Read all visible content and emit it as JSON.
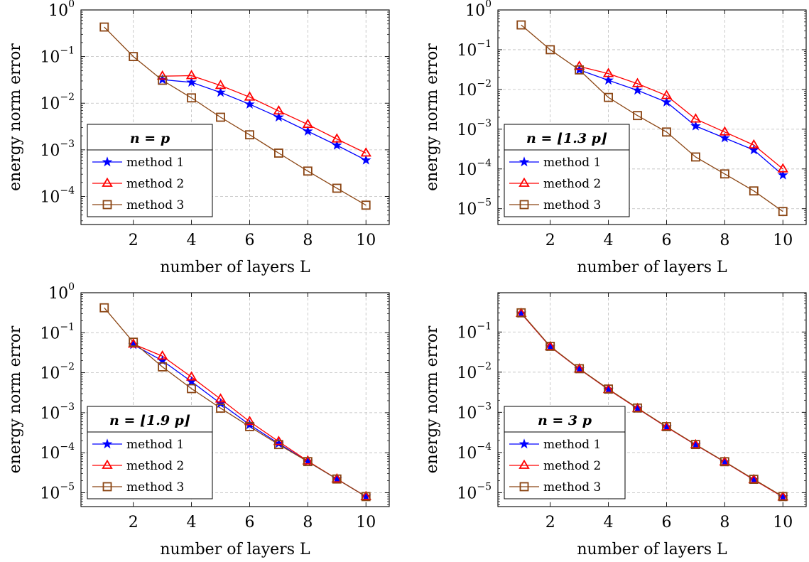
{
  "chart_data": [
    {
      "type": "line",
      "panel": "top-left",
      "x": [
        1,
        2,
        3,
        4,
        5,
        6,
        7,
        8,
        9,
        10
      ],
      "xlabel": "number of layers L",
      "ylabel": "energy norm error",
      "xlim": [
        0.2,
        10.8
      ],
      "ylim": [
        2.5e-05,
        1.0
      ],
      "yscale": "log",
      "xticks": [
        2,
        4,
        6,
        8,
        10
      ],
      "yticks": [
        1,
        0.1,
        0.01,
        0.001,
        0.0001
      ],
      "ytick_labels": [
        {
          "base": "10",
          "exp": "0"
        },
        {
          "base": "10",
          "exp": "−1"
        },
        {
          "base": "10",
          "exp": "−2"
        },
        {
          "base": "10",
          "exp": "−3"
        },
        {
          "base": "10",
          "exp": "−4"
        }
      ],
      "grid": true,
      "legend": {
        "title": "n = p",
        "placement": "bottom-left"
      },
      "series": [
        {
          "name": "method 1",
          "marker": "star",
          "color": "#0000ff",
          "x": [
            3,
            4,
            5,
            6,
            7,
            8,
            9,
            10
          ],
          "values": [
            0.032,
            0.028,
            0.017,
            0.0095,
            0.005,
            0.0025,
            0.00125,
            0.0006
          ]
        },
        {
          "name": "method 2",
          "marker": "triangle",
          "color": "#ff0000",
          "x": [
            3,
            4,
            5,
            6,
            7,
            8,
            9,
            10
          ],
          "values": [
            0.038,
            0.039,
            0.024,
            0.0135,
            0.0068,
            0.0035,
            0.0017,
            0.00085
          ]
        },
        {
          "name": "method 3",
          "marker": "square",
          "color": "#8b4513",
          "x": [
            1,
            2,
            3,
            4,
            5,
            6,
            7,
            8,
            9,
            10
          ],
          "values": [
            0.43,
            0.1,
            0.031,
            0.013,
            0.005,
            0.0021,
            0.00085,
            0.00035,
            0.00015,
            6.5e-05
          ]
        }
      ]
    },
    {
      "type": "line",
      "panel": "top-right",
      "x": [
        1,
        2,
        3,
        4,
        5,
        6,
        7,
        8,
        9,
        10
      ],
      "xlabel": "number of layers L",
      "ylabel": "energy norm error",
      "xlim": [
        0.2,
        10.8
      ],
      "ylim": [
        4e-06,
        1.0
      ],
      "yscale": "log",
      "xticks": [
        2,
        4,
        6,
        8,
        10
      ],
      "yticks": [
        1,
        0.1,
        0.01,
        0.001,
        0.0001,
        1e-05
      ],
      "ytick_labels": [
        {
          "base": "10",
          "exp": "0"
        },
        {
          "base": "10",
          "exp": "−1"
        },
        {
          "base": "10",
          "exp": "−2"
        },
        {
          "base": "10",
          "exp": "−3"
        },
        {
          "base": "10",
          "exp": "−4"
        },
        {
          "base": "10",
          "exp": "−5"
        }
      ],
      "grid": true,
      "legend": {
        "title": "n = ⌊1.3 p⌋",
        "placement": "bottom-left"
      },
      "series": [
        {
          "name": "method 1",
          "marker": "star",
          "color": "#0000ff",
          "x": [
            3,
            4,
            5,
            6,
            7,
            8,
            9,
            10
          ],
          "values": [
            0.031,
            0.017,
            0.0095,
            0.0048,
            0.0012,
            0.0006,
            0.0003,
            7e-05
          ]
        },
        {
          "name": "method 2",
          "marker": "triangle",
          "color": "#ff0000",
          "x": [
            3,
            4,
            5,
            6,
            7,
            8,
            9,
            10
          ],
          "values": [
            0.038,
            0.025,
            0.014,
            0.007,
            0.0018,
            0.00085,
            0.0004,
            0.0001
          ]
        },
        {
          "name": "method 3",
          "marker": "square",
          "color": "#8b4513",
          "x": [
            1,
            2,
            3,
            4,
            5,
            6,
            7,
            8,
            9,
            10
          ],
          "values": [
            0.42,
            0.1,
            0.031,
            0.0063,
            0.0022,
            0.00085,
            0.0002,
            7.5e-05,
            2.8e-05,
            8.5e-06
          ]
        }
      ]
    },
    {
      "type": "line",
      "panel": "bottom-left",
      "x": [
        1,
        2,
        3,
        4,
        5,
        6,
        7,
        8,
        9,
        10
      ],
      "xlabel": "number of layers L",
      "ylabel": "energy norm error",
      "xlim": [
        0.2,
        10.8
      ],
      "ylim": [
        4.5e-06,
        1.0
      ],
      "yscale": "log",
      "xticks": [
        2,
        4,
        6,
        8,
        10
      ],
      "yticks": [
        1,
        0.1,
        0.01,
        0.001,
        0.0001,
        1e-05
      ],
      "ytick_labels": [
        {
          "base": "10",
          "exp": "0"
        },
        {
          "base": "10",
          "exp": "−1"
        },
        {
          "base": "10",
          "exp": "−2"
        },
        {
          "base": "10",
          "exp": "−3"
        },
        {
          "base": "10",
          "exp": "−4"
        },
        {
          "base": "10",
          "exp": "−5"
        }
      ],
      "grid": true,
      "legend": {
        "title": "n = ⌊1.9 p⌋",
        "placement": "bottom-left"
      },
      "series": [
        {
          "name": "method 1",
          "marker": "star",
          "color": "#0000ff",
          "x": [
            2,
            3,
            4,
            5,
            6,
            7,
            8,
            9,
            10
          ],
          "values": [
            0.05,
            0.02,
            0.006,
            0.0017,
            0.0005,
            0.00017,
            6e-05,
            2.2e-05,
            8e-06
          ]
        },
        {
          "name": "method 2",
          "marker": "triangle",
          "color": "#ff0000",
          "x": [
            2,
            3,
            4,
            5,
            6,
            7,
            8,
            9,
            10
          ],
          "values": [
            0.052,
            0.026,
            0.0078,
            0.0022,
            0.0006,
            0.00019,
            6.2e-05,
            2.2e-05,
            8e-06
          ]
        },
        {
          "name": "method 3",
          "marker": "square",
          "color": "#8b4513",
          "x": [
            1,
            2,
            3,
            4,
            5,
            6,
            7,
            8,
            9,
            10
          ],
          "values": [
            0.42,
            0.058,
            0.014,
            0.004,
            0.0013,
            0.00045,
            0.00016,
            6e-05,
            2.2e-05,
            8e-06
          ]
        }
      ]
    },
    {
      "type": "line",
      "panel": "bottom-right",
      "x": [
        1,
        2,
        3,
        4,
        5,
        6,
        7,
        8,
        9,
        10
      ],
      "xlabel": "number of layers L",
      "ylabel": "energy norm error",
      "xlim": [
        0.2,
        10.8
      ],
      "ylim": [
        4.5e-06,
        0.95
      ],
      "yscale": "log",
      "xticks": [
        2,
        4,
        6,
        8,
        10
      ],
      "yticks": [
        0.1,
        0.01,
        0.001,
        0.0001,
        1e-05
      ],
      "ytick_labels": [
        {
          "base": "10",
          "exp": "−1"
        },
        {
          "base": "10",
          "exp": "−2"
        },
        {
          "base": "10",
          "exp": "−3"
        },
        {
          "base": "10",
          "exp": "−4"
        },
        {
          "base": "10",
          "exp": "−5"
        }
      ],
      "grid": true,
      "legend": {
        "title": "n = 3 p",
        "placement": "bottom-left"
      },
      "series": [
        {
          "name": "method 1",
          "marker": "star",
          "color": "#0000ff",
          "x": [
            1,
            2,
            3,
            4,
            5,
            6,
            7,
            8,
            9,
            10
          ],
          "values": [
            0.29,
            0.043,
            0.012,
            0.0037,
            0.00125,
            0.00043,
            0.000155,
            5.8e-05,
            2.1e-05,
            7.8e-06
          ]
        },
        {
          "name": "method 2",
          "marker": "triangle",
          "color": "#ff0000",
          "x": [
            1,
            2,
            3,
            4,
            5,
            6,
            7,
            8,
            9,
            10
          ],
          "values": [
            0.29,
            0.043,
            0.012,
            0.0037,
            0.00125,
            0.00043,
            0.000155,
            5.8e-05,
            2.1e-05,
            7.8e-06
          ]
        },
        {
          "name": "method 3",
          "marker": "square",
          "color": "#8b4513",
          "x": [
            1,
            2,
            3,
            4,
            5,
            6,
            7,
            8,
            9,
            10
          ],
          "values": [
            0.3,
            0.044,
            0.0122,
            0.0038,
            0.00128,
            0.00044,
            0.000158,
            5.9e-05,
            2.15e-05,
            8e-06
          ]
        }
      ]
    }
  ]
}
